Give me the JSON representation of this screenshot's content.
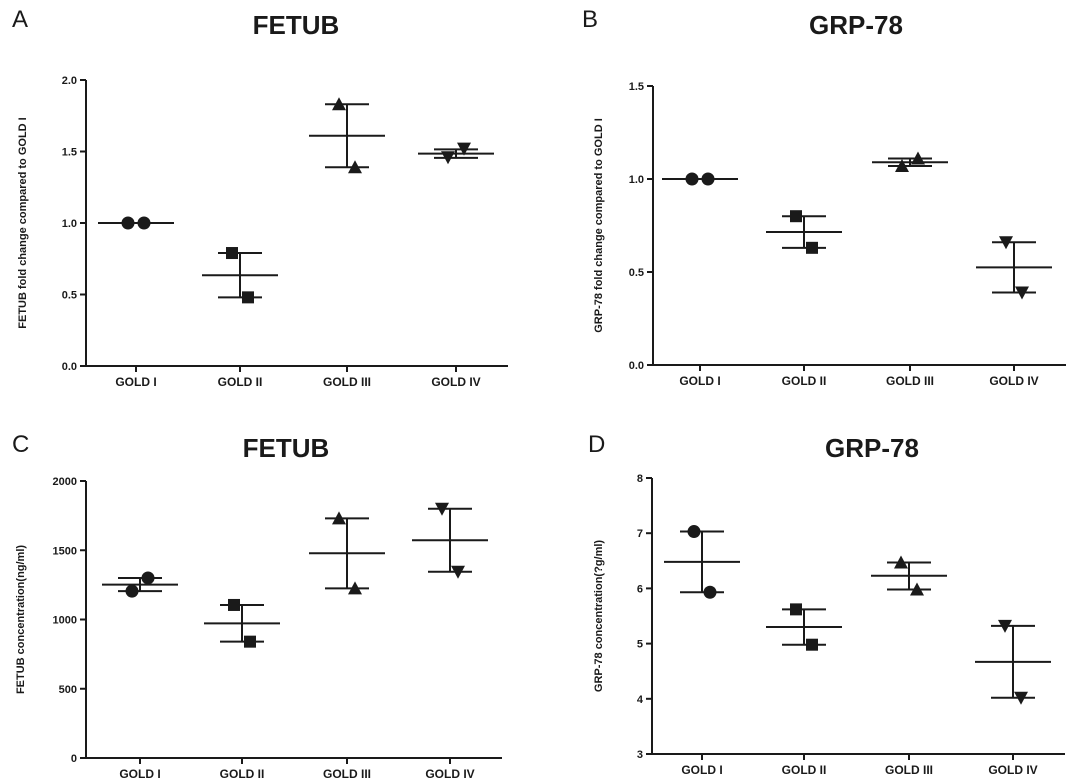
{
  "chart_data": [
    {
      "panel": "A",
      "type": "scatter",
      "title": "FETUB",
      "xlabel": "",
      "ylabel": "FETUB fold change compared to GOLD I",
      "ylim": [
        0,
        2.0
      ],
      "yticks": [
        "0.0",
        "0.5",
        "1.0",
        "1.5",
        "2.0"
      ],
      "ytick_values": [
        0,
        0.5,
        1.0,
        1.5,
        2.0
      ],
      "categories": [
        "GOLD I",
        "GOLD II",
        "GOLD III",
        "GOLD IV"
      ],
      "markers": [
        "circle",
        "square",
        "triangle-up",
        "triangle-down"
      ],
      "points": [
        [
          1.0,
          1.0
        ],
        [
          0.79,
          0.48
        ],
        [
          1.83,
          1.39
        ],
        [
          1.46,
          1.52
        ]
      ],
      "mean": [
        1.0,
        0.635,
        1.61,
        1.485
      ],
      "error_low": [
        1.0,
        0.48,
        1.39,
        1.455
      ],
      "error_high": [
        1.0,
        0.79,
        1.83,
        1.515
      ]
    },
    {
      "panel": "B",
      "type": "scatter",
      "title": "GRP-78",
      "xlabel": "",
      "ylabel": "GRP-78 fold change compared to GOLD I",
      "ylim": [
        0,
        1.5
      ],
      "yticks": [
        "0.0",
        "0.5",
        "1.0",
        "1.5"
      ],
      "ytick_values": [
        0,
        0.5,
        1.0,
        1.5
      ],
      "categories": [
        "GOLD I",
        "GOLD II",
        "GOLD III",
        "GOLD IV"
      ],
      "markers": [
        "circle",
        "square",
        "triangle-up",
        "triangle-down"
      ],
      "points": [
        [
          1.0,
          1.0
        ],
        [
          0.8,
          0.63
        ],
        [
          1.07,
          1.11
        ],
        [
          0.66,
          0.39
        ]
      ],
      "mean": [
        1.0,
        0.715,
        1.09,
        0.525
      ],
      "error_low": [
        1.0,
        0.63,
        1.07,
        0.39
      ],
      "error_high": [
        1.0,
        0.8,
        1.11,
        0.66
      ]
    },
    {
      "panel": "C",
      "type": "scatter",
      "title": "FETUB",
      "xlabel": "",
      "ylabel": "FETUB concentration(ng/ml)",
      "ylim": [
        0,
        2000
      ],
      "yticks": [
        "0",
        "500",
        "1000",
        "1500",
        "2000"
      ],
      "ytick_values": [
        0,
        500,
        1000,
        1500,
        2000
      ],
      "categories": [
        "GOLD I",
        "GOLD II",
        "GOLD III",
        "GOLD IV"
      ],
      "markers": [
        "circle",
        "square",
        "triangle-up",
        "triangle-down"
      ],
      "points": [
        [
          1205,
          1300
        ],
        [
          1105,
          840
        ],
        [
          1730,
          1225
        ],
        [
          1800,
          1345
        ]
      ],
      "mean": [
        1252,
        972,
        1478,
        1572
      ],
      "error_low": [
        1205,
        840,
        1225,
        1345
      ],
      "error_high": [
        1300,
        1105,
        1730,
        1800
      ]
    },
    {
      "panel": "D",
      "type": "scatter",
      "title": "GRP-78",
      "xlabel": "",
      "ylabel": "GRP-78 concentration(?g/ml)",
      "ylim": [
        3,
        8
      ],
      "yticks": [
        "3",
        "4",
        "5",
        "6",
        "7",
        "8"
      ],
      "ytick_values": [
        3,
        4,
        5,
        6,
        7,
        8
      ],
      "categories": [
        "GOLD I",
        "GOLD II",
        "GOLD III",
        "GOLD IV"
      ],
      "markers": [
        "circle",
        "square",
        "triangle-up",
        "triangle-down"
      ],
      "points": [
        [
          7.03,
          5.93
        ],
        [
          5.62,
          4.98
        ],
        [
          6.47,
          5.98
        ],
        [
          5.32,
          4.02
        ]
      ],
      "mean": [
        6.48,
        5.3,
        6.23,
        4.67
      ],
      "error_low": [
        5.93,
        4.98,
        5.98,
        4.02
      ],
      "error_high": [
        7.03,
        5.62,
        6.47,
        5.32
      ]
    }
  ]
}
